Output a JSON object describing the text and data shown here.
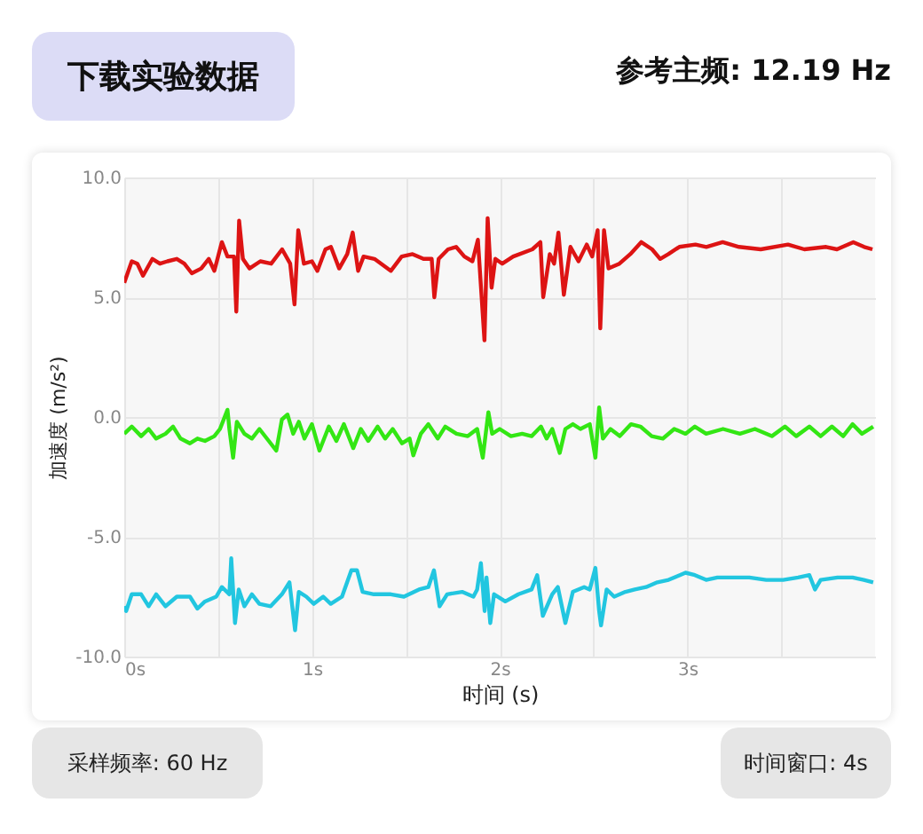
{
  "chart_data": {
    "type": "line",
    "xlabel": "时间 (s)",
    "ylabel": "加速度 (m/s²)",
    "annotations": [
      "下载实验数据",
      "参考主频: 12.19 Hz",
      "采样频率: 60 Hz",
      "时间窗口: 4s"
    ],
    "xlim": [
      0,
      4
    ],
    "ylim": [
      -10,
      10
    ],
    "xticks": [
      {
        "value": 0,
        "label": "0s"
      },
      {
        "value": 0.5,
        "label": null
      },
      {
        "value": 1,
        "label": "1s"
      },
      {
        "value": 1.5,
        "label": null
      },
      {
        "value": 2,
        "label": "2s"
      },
      {
        "value": 2.5,
        "label": null
      },
      {
        "value": 3,
        "label": "3s"
      },
      {
        "value": 3.5,
        "label": null
      }
    ],
    "yticks": [
      {
        "value": 10,
        "label": "10.0"
      },
      {
        "value": 5,
        "label": "5.0"
      },
      {
        "value": 0,
        "label": "0.0"
      },
      {
        "value": -5,
        "label": "-5.0"
      },
      {
        "value": -10,
        "label": "-10.0"
      }
    ],
    "grid": true,
    "marker": "none",
    "line_style": "solid",
    "series": [
      {
        "color": "#dd1414",
        "x": [
          0,
          0.04,
          0.07,
          0.1,
          0.15,
          0.19,
          0.23,
          0.28,
          0.32,
          0.36,
          0.41,
          0.45,
          0.48,
          0.52,
          0.55,
          0.585,
          0.597,
          0.612,
          0.632,
          0.667,
          0.725,
          0.783,
          0.841,
          0.884,
          0.907,
          0.927,
          0.957,
          1,
          1.029,
          1.072,
          1.101,
          1.145,
          1.188,
          1.217,
          1.246,
          1.275,
          1.333,
          1.42,
          1.478,
          1.536,
          1.594,
          1.638,
          1.652,
          1.675,
          1.725,
          1.768,
          1.812,
          1.855,
          1.884,
          1.919,
          1.936,
          1.957,
          1.977,
          2.014,
          2.072,
          2.174,
          2.217,
          2.232,
          2.267,
          2.29,
          2.313,
          2.342,
          2.377,
          2.42,
          2.464,
          2.493,
          2.522,
          2.536,
          2.556,
          2.58,
          2.638,
          2.696,
          2.754,
          2.812,
          2.855,
          2.899,
          2.957,
          3.043,
          3.101,
          3.188,
          3.275,
          3.391,
          3.536,
          3.623,
          3.739,
          3.797,
          3.884,
          3.942,
          3.986
        ],
        "values": [
          5.6,
          6.5,
          6.4,
          5.9,
          6.6,
          6.4,
          6.5,
          6.6,
          6.4,
          6.0,
          6.2,
          6.6,
          6.1,
          7.3,
          6.7,
          6.7,
          4.4,
          8.2,
          6.6,
          6.2,
          6.5,
          6.4,
          7.0,
          6.4,
          4.7,
          7.8,
          6.4,
          6.5,
          6.1,
          7.0,
          7.1,
          6.2,
          6.8,
          7.7,
          6.1,
          6.7,
          6.6,
          6.1,
          6.7,
          6.8,
          6.6,
          6.6,
          5.0,
          6.6,
          7.0,
          7.1,
          6.7,
          6.5,
          7.4,
          3.2,
          8.3,
          5.4,
          6.6,
          6.4,
          6.7,
          7.0,
          7.3,
          5.0,
          6.8,
          6.4,
          7.7,
          5.1,
          7.1,
          6.5,
          7.2,
          6.7,
          7.8,
          3.7,
          7.8,
          6.2,
          6.4,
          6.8,
          7.3,
          7.0,
          6.6,
          6.8,
          7.1,
          7.2,
          7.1,
          7.3,
          7.1,
          7.0,
          7.2,
          7.0,
          7.1,
          7.0,
          7.3,
          7.1,
          7.0
        ]
      },
      {
        "color": "#33e614",
        "x": [
          0,
          0.04,
          0.09,
          0.13,
          0.17,
          0.22,
          0.26,
          0.3,
          0.35,
          0.39,
          0.43,
          0.48,
          0.51,
          0.55,
          0.56,
          0.58,
          0.6,
          0.64,
          0.68,
          0.72,
          0.77,
          0.81,
          0.84,
          0.87,
          0.9,
          0.93,
          0.96,
          1,
          1.04,
          1.09,
          1.13,
          1.17,
          1.22,
          1.26,
          1.3,
          1.35,
          1.39,
          1.43,
          1.48,
          1.52,
          1.54,
          1.58,
          1.62,
          1.67,
          1.71,
          1.77,
          1.83,
          1.88,
          1.91,
          1.94,
          1.96,
          2,
          2.06,
          2.12,
          2.17,
          2.22,
          2.25,
          2.28,
          2.32,
          2.35,
          2.39,
          2.43,
          2.48,
          2.51,
          2.53,
          2.55,
          2.59,
          2.64,
          2.7,
          2.75,
          2.81,
          2.87,
          2.93,
          2.99,
          3.04,
          3.1,
          3.19,
          3.28,
          3.36,
          3.45,
          3.52,
          3.58,
          3.65,
          3.71,
          3.77,
          3.83,
          3.88,
          3.93,
          3.99
        ],
        "values": [
          -0.7,
          -0.4,
          -0.8,
          -0.5,
          -0.9,
          -0.7,
          -0.4,
          -0.9,
          -1.1,
          -0.9,
          -1.0,
          -0.8,
          -0.5,
          0.3,
          -0.5,
          -1.7,
          -0.2,
          -0.7,
          -0.9,
          -0.5,
          -1.0,
          -1.4,
          -0.1,
          0.1,
          -0.7,
          -0.2,
          -0.9,
          -0.3,
          -1.4,
          -0.4,
          -1.0,
          -0.3,
          -1.3,
          -0.5,
          -1.0,
          -0.4,
          -0.9,
          -0.5,
          -1.1,
          -0.9,
          -1.6,
          -0.7,
          -0.3,
          -0.9,
          -0.4,
          -0.7,
          -0.8,
          -0.5,
          -1.7,
          0.2,
          -0.7,
          -0.5,
          -0.8,
          -0.7,
          -0.8,
          -0.4,
          -0.9,
          -0.5,
          -1.5,
          -0.5,
          -0.3,
          -0.5,
          -0.3,
          -1.7,
          0.4,
          -0.9,
          -0.5,
          -0.8,
          -0.3,
          -0.4,
          -0.8,
          -0.9,
          -0.5,
          -0.7,
          -0.4,
          -0.7,
          -0.5,
          -0.7,
          -0.5,
          -0.8,
          -0.4,
          -0.8,
          -0.4,
          -0.8,
          -0.4,
          -0.8,
          -0.3,
          -0.7,
          -0.4
        ]
      },
      {
        "color": "#22c6e0",
        "x": [
          0,
          0.01,
          0.04,
          0.09,
          0.13,
          0.17,
          0.22,
          0.28,
          0.35,
          0.39,
          0.43,
          0.49,
          0.52,
          0.56,
          0.57,
          0.59,
          0.61,
          0.64,
          0.68,
          0.72,
          0.78,
          0.84,
          0.88,
          0.91,
          0.93,
          0.97,
          1.01,
          1.06,
          1.1,
          1.16,
          1.21,
          1.24,
          1.27,
          1.33,
          1.42,
          1.49,
          1.57,
          1.62,
          1.65,
          1.68,
          1.72,
          1.8,
          1.86,
          1.88,
          1.9,
          1.92,
          1.93,
          1.95,
          1.97,
          2.03,
          2.1,
          2.17,
          2.2,
          2.23,
          2.28,
          2.31,
          2.35,
          2.39,
          2.45,
          2.48,
          2.51,
          2.53,
          2.54,
          2.57,
          2.61,
          2.67,
          2.72,
          2.78,
          2.84,
          2.9,
          2.96,
          2.99,
          3.04,
          3.1,
          3.16,
          3.25,
          3.33,
          3.42,
          3.51,
          3.59,
          3.65,
          3.68,
          3.71,
          3.8,
          3.88,
          3.94,
          3.99
        ],
        "values": [
          -7.9,
          -8.1,
          -7.4,
          -7.4,
          -7.9,
          -7.4,
          -7.9,
          -7.5,
          -7.5,
          -8.0,
          -7.7,
          -7.5,
          -7.1,
          -7.4,
          -5.9,
          -8.6,
          -7.2,
          -7.9,
          -7.4,
          -7.8,
          -7.9,
          -7.4,
          -6.9,
          -8.9,
          -7.3,
          -7.5,
          -7.8,
          -7.5,
          -7.8,
          -7.5,
          -6.4,
          -6.4,
          -7.3,
          -7.4,
          -7.4,
          -7.5,
          -7.2,
          -7.1,
          -6.4,
          -7.9,
          -7.4,
          -7.3,
          -7.5,
          -7.2,
          -6.1,
          -8.1,
          -6.7,
          -8.6,
          -7.4,
          -7.7,
          -7.4,
          -7.2,
          -6.6,
          -8.3,
          -7.4,
          -7.1,
          -8.6,
          -7.3,
          -7.1,
          -7.2,
          -6.3,
          -8.1,
          -8.7,
          -7.2,
          -7.5,
          -7.3,
          -7.2,
          -7.1,
          -6.9,
          -6.8,
          -6.6,
          -6.5,
          -6.6,
          -6.8,
          -6.7,
          -6.7,
          -6.7,
          -6.8,
          -6.8,
          -6.7,
          -6.6,
          -7.2,
          -6.8,
          -6.7,
          -6.7,
          -6.8,
          -6.9
        ]
      }
    ]
  }
}
